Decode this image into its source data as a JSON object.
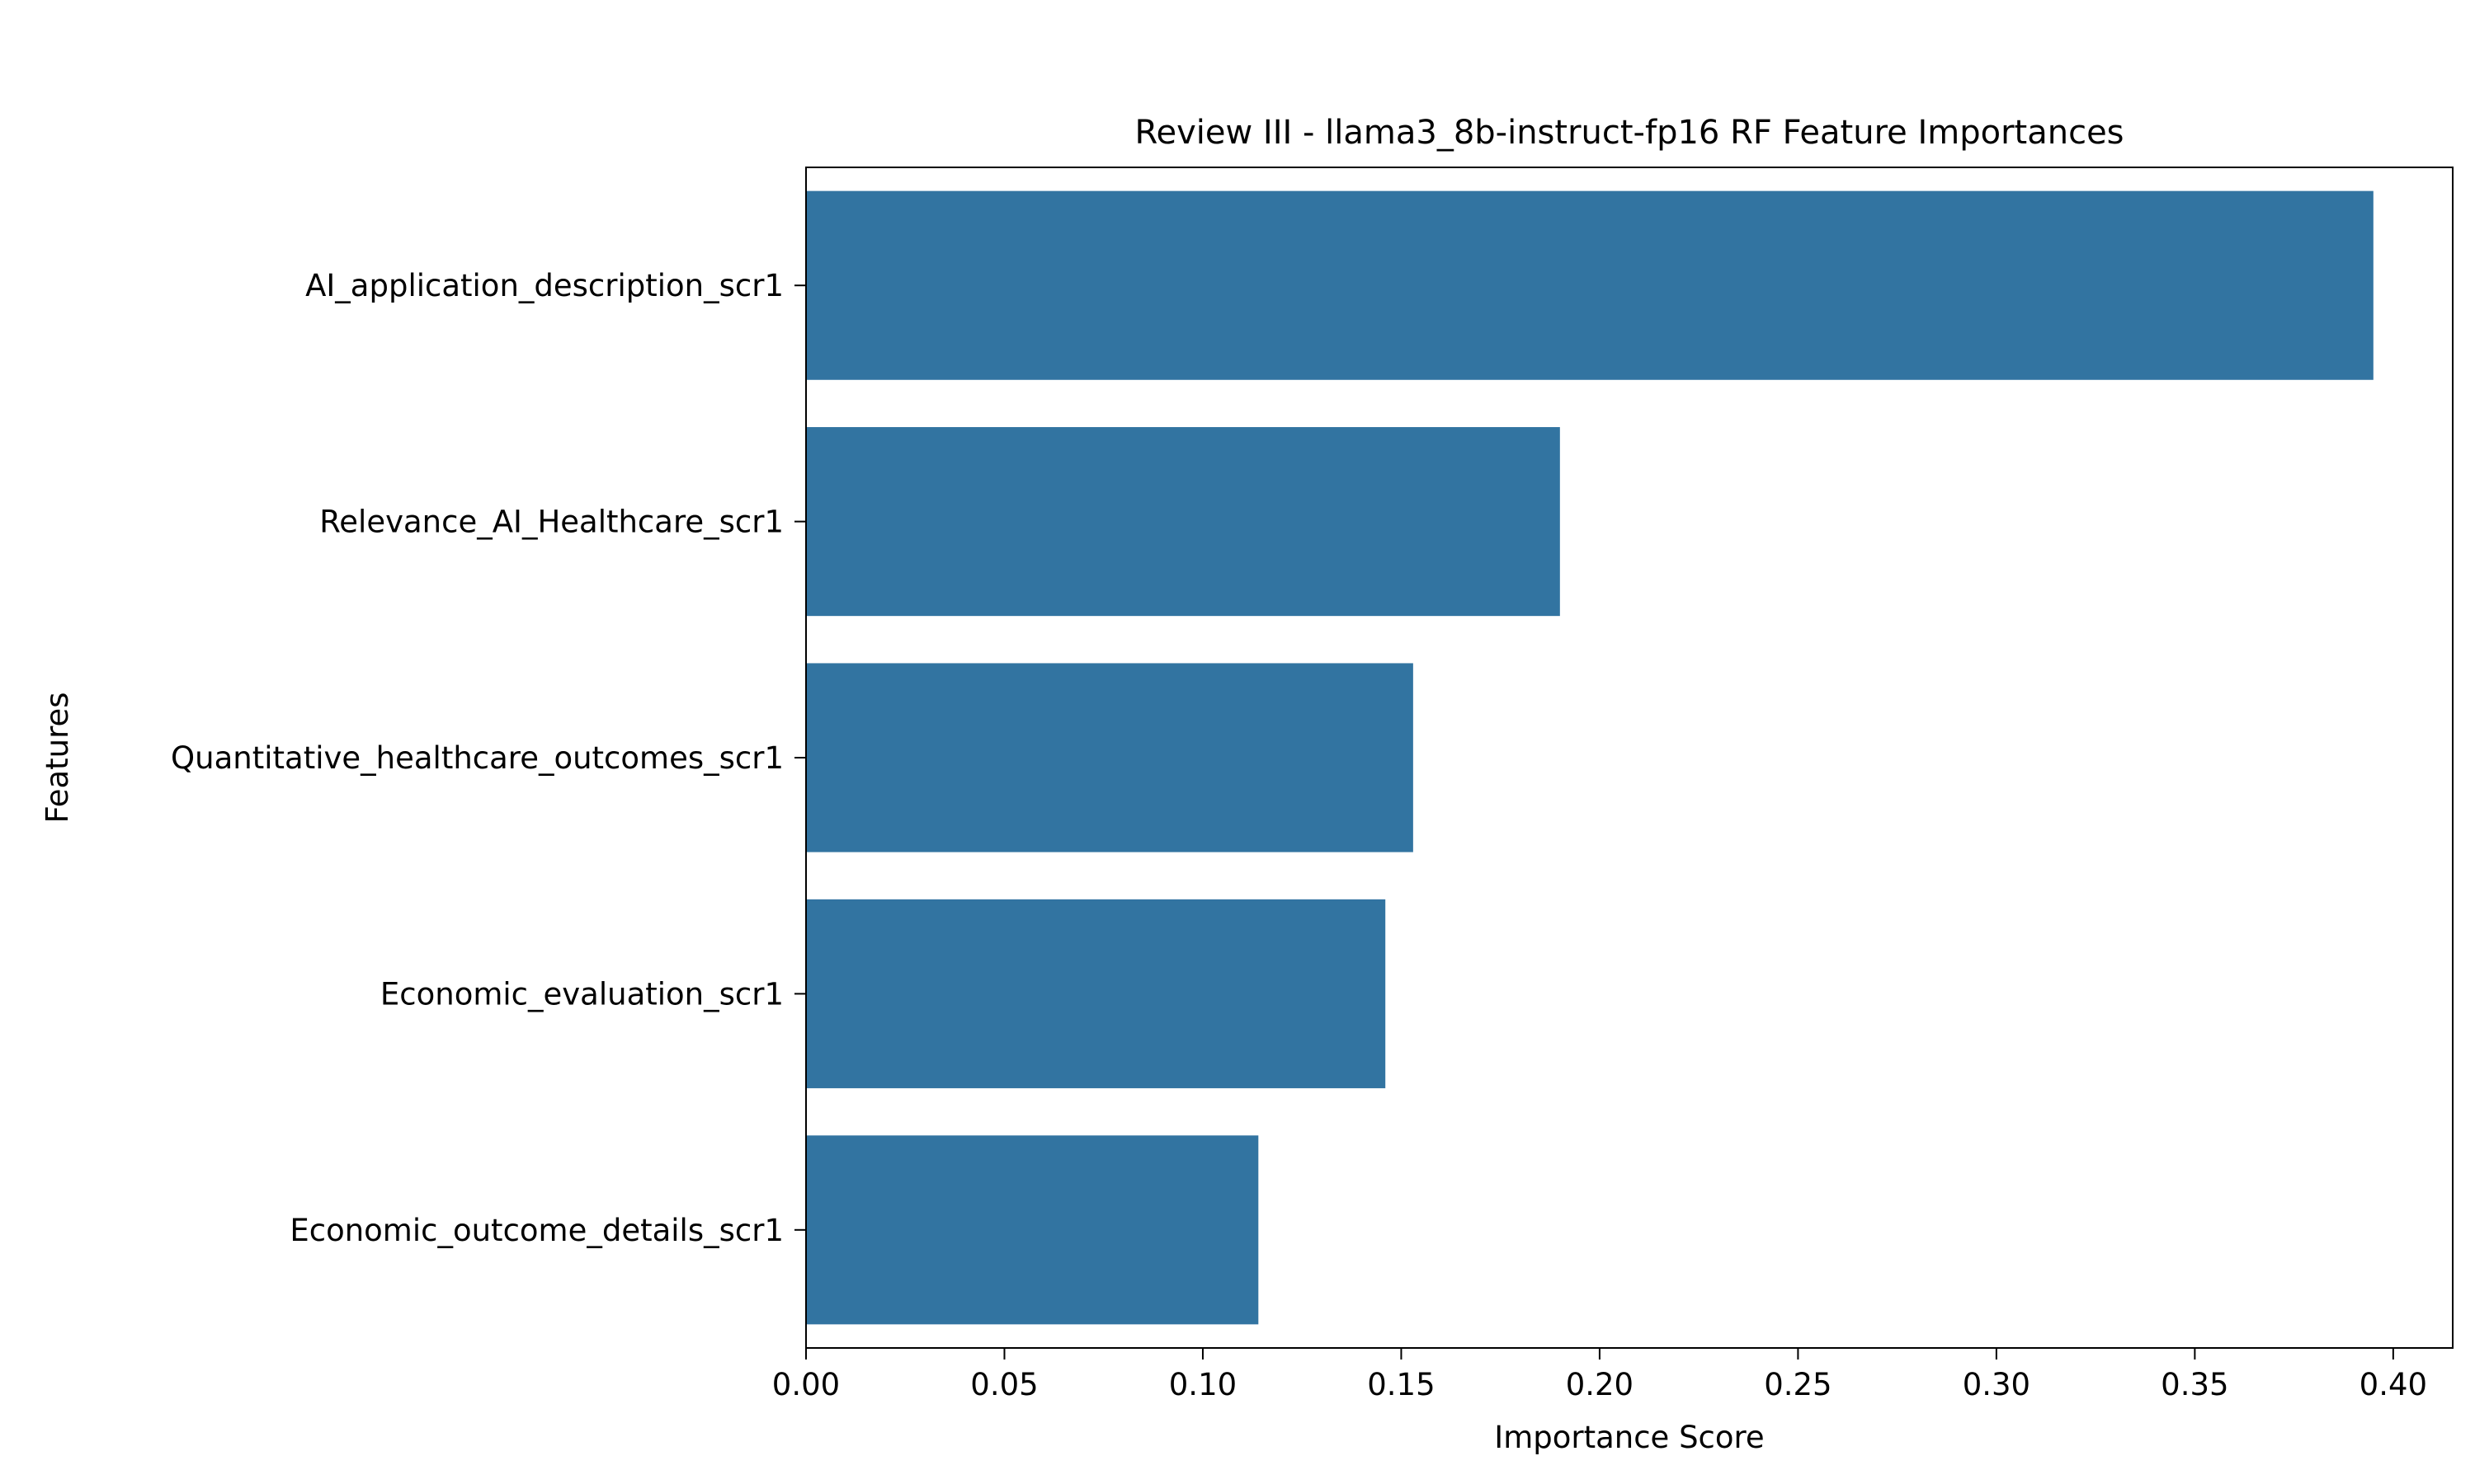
{
  "chart_data": {
    "type": "bar",
    "orientation": "horizontal",
    "title": "Review III - llama3_8b-instruct-fp16 RF Feature Importances",
    "xlabel": "Importance Score",
    "ylabel": "Features",
    "categories": [
      "AI_application_description_scr1",
      "Relevance_AI_Healthcare_scr1",
      "Quantitative_healthcare_outcomes_scr1",
      "Economic_evaluation_scr1",
      "Economic_outcome_details_scr1"
    ],
    "values": [
      0.395,
      0.19,
      0.153,
      0.146,
      0.114
    ],
    "xlim": [
      0.0,
      0.415
    ],
    "xticks": [
      0.0,
      0.05,
      0.1,
      0.15,
      0.2,
      0.25,
      0.3,
      0.35,
      0.4
    ],
    "xtick_labels": [
      "0.00",
      "0.05",
      "0.10",
      "0.15",
      "0.20",
      "0.25",
      "0.30",
      "0.35",
      "0.40"
    ],
    "grid": false,
    "legend": "none",
    "bar_color": "#3274a1"
  }
}
